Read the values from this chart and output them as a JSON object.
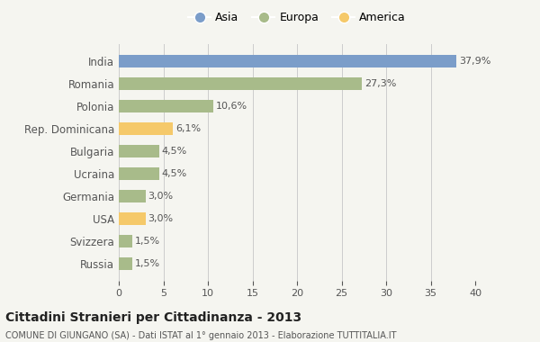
{
  "categories": [
    "Russia",
    "Svizzera",
    "USA",
    "Germania",
    "Ucraina",
    "Bulgaria",
    "Rep. Dominicana",
    "Polonia",
    "Romania",
    "India"
  ],
  "values": [
    1.5,
    1.5,
    3.0,
    3.0,
    4.5,
    4.5,
    6.1,
    10.6,
    27.3,
    37.9
  ],
  "labels": [
    "1,5%",
    "1,5%",
    "3,0%",
    "3,0%",
    "4,5%",
    "4,5%",
    "6,1%",
    "10,6%",
    "27,3%",
    "37,9%"
  ],
  "colors": [
    "#a8bb8a",
    "#a8bb8a",
    "#f5c96a",
    "#a8bb8a",
    "#a8bb8a",
    "#a8bb8a",
    "#f5c96a",
    "#a8bb8a",
    "#a8bb8a",
    "#7b9dc9"
  ],
  "legend": [
    {
      "label": "Asia",
      "color": "#7b9dc9"
    },
    {
      "label": "Europa",
      "color": "#a8bb8a"
    },
    {
      "label": "America",
      "color": "#f5c96a"
    }
  ],
  "xlim": [
    0,
    40
  ],
  "xticks": [
    0,
    5,
    10,
    15,
    20,
    25,
    30,
    35,
    40
  ],
  "title": "Cittadini Stranieri per Cittadinanza - 2013",
  "subtitle": "COMUNE DI GIUNGANO (SA) - Dati ISTAT al 1° gennaio 2013 - Elaborazione TUTTITALIA.IT",
  "background_color": "#f5f5f0",
  "bar_height": 0.55,
  "figsize": [
    6.0,
    3.8
  ],
  "dpi": 100
}
